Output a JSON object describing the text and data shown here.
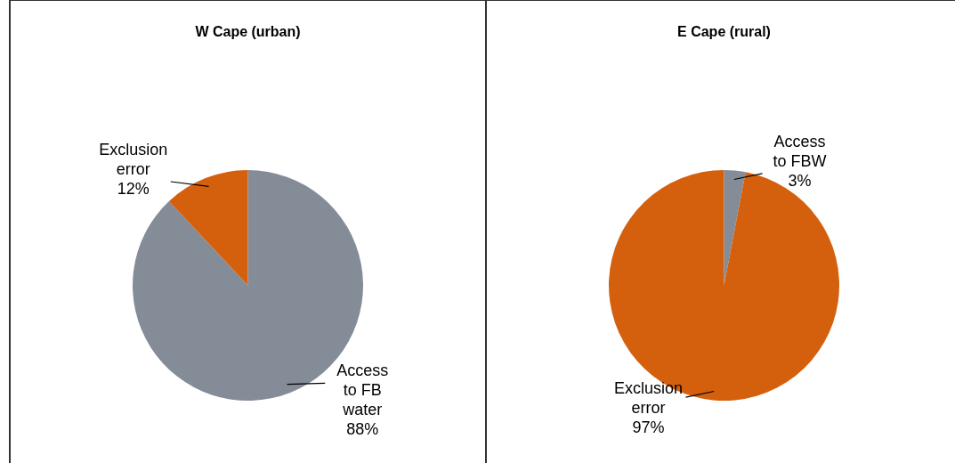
{
  "chart_data": [
    {
      "type": "pie",
      "title": "W Cape (urban)",
      "categories": [
        "Access to FB water",
        "Exclusion error"
      ],
      "values": [
        88,
        12
      ],
      "value_labels": [
        "88%",
        "12%"
      ],
      "colors": [
        "#848c98",
        "#d4600e"
      ]
    },
    {
      "type": "pie",
      "title": "E Cape (rural)",
      "categories": [
        "Access to FBW",
        "Exclusion error"
      ],
      "values": [
        3,
        97
      ],
      "value_labels": [
        "3%",
        "97%"
      ],
      "colors": [
        "#848c98",
        "#d4600e"
      ]
    }
  ]
}
